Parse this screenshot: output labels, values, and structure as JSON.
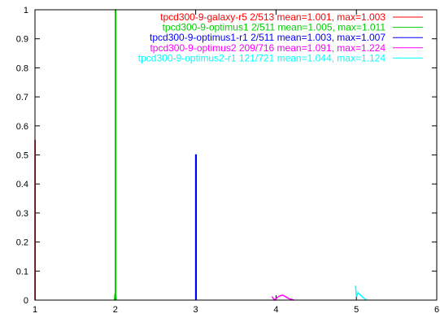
{
  "chart_data": {
    "type": "line",
    "title": "",
    "xlabel": "",
    "ylabel": "",
    "xlim": [
      1,
      6
    ],
    "ylim": [
      0,
      1
    ],
    "x_ticks": [
      1,
      2,
      3,
      4,
      5,
      6
    ],
    "y_ticks": [
      0,
      0.1,
      0.2,
      0.3,
      0.4,
      0.5,
      0.6,
      0.7,
      0.8,
      0.9,
      1
    ],
    "grid": false,
    "legend_position": "top-right",
    "series": [
      {
        "name": "tpcd300-9-galaxy-r5 2/513 mean=1.001, max=1.003",
        "color": "#ff0000",
        "points": [
          [
            1.0,
            0
          ],
          [
            1.0,
            0.55
          ],
          [
            1.003,
            0.55
          ],
          [
            1.003,
            0
          ]
        ]
      },
      {
        "name": "tpcd300-9-optimus1 2/511 mean=1.005, max=1.011",
        "color": "#00cc00",
        "points": [
          [
            1.99,
            0
          ],
          [
            1.995,
            0.02
          ],
          [
            2.0,
            0.02
          ],
          [
            2.0,
            1.0
          ],
          [
            2.005,
            1.0
          ],
          [
            2.005,
            0.02
          ],
          [
            2.011,
            0
          ]
        ]
      },
      {
        "name": "tpcd300-9-optimus1-r1 2/511 mean=1.003, max=1.007",
        "color": "#0000ff",
        "points": [
          [
            3.0,
            0
          ],
          [
            3.0,
            0.5
          ],
          [
            3.007,
            0.5
          ],
          [
            3.007,
            0
          ]
        ]
      },
      {
        "name": "tpcd300-9-optimus2 209/716 mean=1.091, max=1.224",
        "color": "#ff00ff",
        "points": [
          [
            3.95,
            0.012
          ],
          [
            3.98,
            0
          ],
          [
            4.0,
            0.005
          ],
          [
            4.03,
            0.012
          ],
          [
            4.06,
            0.016
          ],
          [
            4.08,
            0.017
          ],
          [
            4.1,
            0.015
          ],
          [
            4.13,
            0.01
          ],
          [
            4.16,
            0.005
          ],
          [
            4.2,
            0.002
          ],
          [
            4.224,
            0
          ]
        ]
      },
      {
        "name": "tpcd300-9-optimus2-r1 121/721 mean=1.044, max=1.124",
        "color": "#00ffff",
        "points": [
          [
            4.99,
            0.05
          ],
          [
            5.0,
            0.012
          ],
          [
            5.02,
            0.025
          ],
          [
            5.04,
            0.02
          ],
          [
            5.07,
            0.012
          ],
          [
            5.1,
            0.005
          ],
          [
            5.124,
            0
          ]
        ]
      }
    ]
  }
}
